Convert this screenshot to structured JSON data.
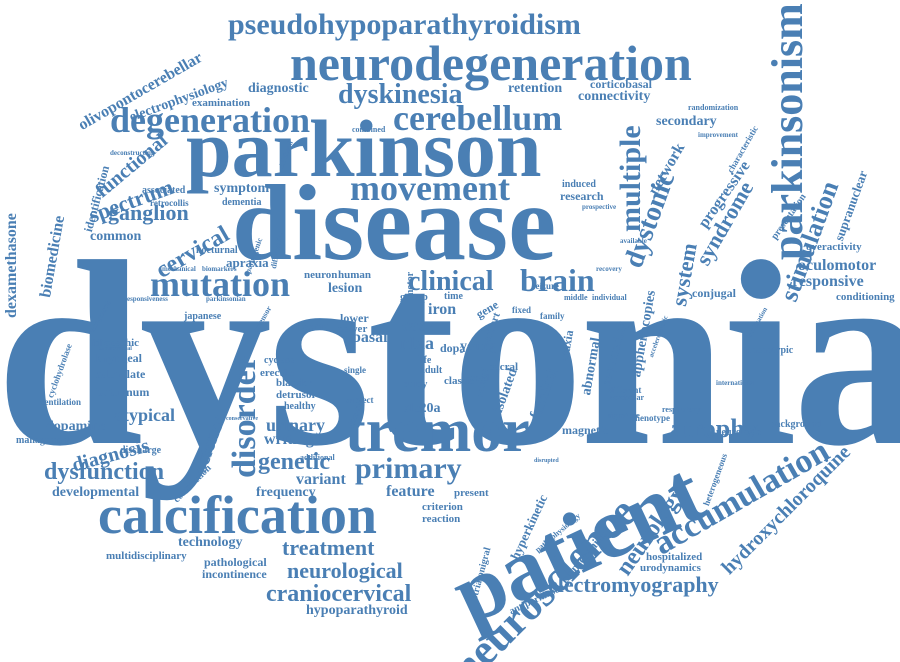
{
  "theme": {
    "word_color": "#4a7fb4",
    "background": "#ffffff"
  },
  "words": [
    {
      "text": "dystonia"
    },
    {
      "text": "disease"
    },
    {
      "text": "parkinson"
    },
    {
      "text": "patient"
    },
    {
      "text": "neurodegeneration"
    },
    {
      "text": "tremor"
    },
    {
      "text": "calcification"
    },
    {
      "text": "pseudohypoparathyroidism"
    },
    {
      "text": "parkinsonism"
    },
    {
      "text": "movement"
    },
    {
      "text": "degeneration"
    },
    {
      "text": "cerebellum"
    },
    {
      "text": "mutation"
    },
    {
      "text": "neuroscience"
    },
    {
      "text": "accumulation"
    },
    {
      "text": "disorder"
    },
    {
      "text": "primary"
    },
    {
      "text": "brain"
    },
    {
      "text": "clinical"
    },
    {
      "text": "dyskinesia"
    },
    {
      "text": "electromyography"
    },
    {
      "text": "craniocervical"
    },
    {
      "text": "neurological"
    },
    {
      "text": "treatment"
    },
    {
      "text": "dysfunction"
    },
    {
      "text": "genetic"
    },
    {
      "text": "atrophy"
    },
    {
      "text": "hydroxychloroquine"
    },
    {
      "text": "neurology"
    },
    {
      "text": "cervical"
    },
    {
      "text": "ganglion"
    },
    {
      "text": "spectrum"
    },
    {
      "text": "functional"
    },
    {
      "text": "multiple"
    },
    {
      "text": "dystonic"
    },
    {
      "text": "syndrome"
    },
    {
      "text": "system"
    },
    {
      "text": "stimulation"
    },
    {
      "text": "science"
    },
    {
      "text": "dexamethasone"
    },
    {
      "text": "biomedicine"
    },
    {
      "text": "olivopontocerebellar"
    },
    {
      "text": "electrophysiology"
    },
    {
      "text": "diagnostic"
    },
    {
      "text": "examination"
    },
    {
      "text": "retention"
    },
    {
      "text": "connectivity"
    },
    {
      "text": "corticobasal"
    },
    {
      "text": "secondary"
    },
    {
      "text": "network"
    },
    {
      "text": "progressive"
    },
    {
      "text": "supranuclear"
    },
    {
      "text": "oculomotor"
    },
    {
      "text": "responsive"
    },
    {
      "text": "overactivity"
    },
    {
      "text": "conditioning"
    },
    {
      "text": "conjugal"
    },
    {
      "text": "phenotypic"
    },
    {
      "text": "background"
    },
    {
      "text": "neurologic"
    },
    {
      "text": "hospitalized"
    },
    {
      "text": "urodynamics"
    },
    {
      "text": "hyperkinetic"
    },
    {
      "text": "transcranial"
    },
    {
      "text": "antiparkinson"
    },
    {
      "text": "hypoparathyroid"
    },
    {
      "text": "technology"
    },
    {
      "text": "multidisciplinary"
    },
    {
      "text": "pathological"
    },
    {
      "text": "incontinence"
    },
    {
      "text": "developmental"
    },
    {
      "text": "diagnosis"
    },
    {
      "text": "dopamine"
    },
    {
      "text": "management"
    },
    {
      "text": "atypical"
    },
    {
      "text": "botulinum"
    },
    {
      "text": "adenylate"
    },
    {
      "text": "laryngeal"
    },
    {
      "text": "idiopathic"
    },
    {
      "text": "common"
    },
    {
      "text": "symptom"
    },
    {
      "text": "dementia"
    },
    {
      "text": "apraxia"
    },
    {
      "text": "nocturnal"
    },
    {
      "text": "urinary"
    },
    {
      "text": "writing"
    },
    {
      "text": "variant"
    },
    {
      "text": "frequency"
    },
    {
      "text": "feature"
    },
    {
      "text": "present"
    },
    {
      "text": "criterion"
    },
    {
      "text": "reaction"
    },
    {
      "text": "case"
    },
    {
      "text": "nbia"
    },
    {
      "text": "basal"
    },
    {
      "text": "lesion"
    },
    {
      "text": "neuron"
    },
    {
      "text": "human"
    },
    {
      "text": "iron"
    },
    {
      "text": "young"
    },
    {
      "text": "isolated"
    },
    {
      "text": "familial"
    },
    {
      "text": "abnormal"
    },
    {
      "text": "sequencing"
    },
    {
      "text": "apphenocopies"
    },
    {
      "text": "ataxia"
    },
    {
      "text": "slc20a"
    },
    {
      "text": "magnetic"
    },
    {
      "text": "induced"
    },
    {
      "text": "research"
    },
    {
      "text": "classic"
    },
    {
      "text": "group"
    },
    {
      "text": "gene"
    },
    {
      "text": "cohort"
    },
    {
      "text": "exome"
    },
    {
      "text": "japanese"
    },
    {
      "text": "erectile"
    },
    {
      "text": "bladder"
    },
    {
      "text": "detrusor"
    },
    {
      "text": "healthy"
    },
    {
      "text": "contraction"
    },
    {
      "text": "discharge"
    },
    {
      "text": "ventilation"
    },
    {
      "text": "identification"
    },
    {
      "text": "associated"
    },
    {
      "text": "retrocollis"
    },
    {
      "text": "combined"
    },
    {
      "text": "randomization"
    },
    {
      "text": "improvement"
    },
    {
      "text": "characteristic"
    },
    {
      "text": "presentation"
    },
    {
      "text": "cyclohydrolase"
    },
    {
      "text": "urogenital"
    },
    {
      "text": "different"
    },
    {
      "text": "cerebellar"
    },
    {
      "text": "signature"
    },
    {
      "text": "respiratory"
    },
    {
      "text": "phenotype"
    },
    {
      "text": "heterogeneous"
    },
    {
      "text": "striatonigral"
    },
    {
      "text": "lower"
    },
    {
      "text": "power"
    },
    {
      "text": "dopa"
    },
    {
      "text": "cord"
    },
    {
      "text": "sacral"
    },
    {
      "text": "life"
    },
    {
      "text": "time"
    },
    {
      "text": "fixed"
    },
    {
      "text": "family"
    },
    {
      "text": "deconstructing"
    },
    {
      "text": "childhood"
    },
    {
      "text": "mechanical"
    },
    {
      "text": "cyclase"
    },
    {
      "text": "pathophysiology"
    },
    {
      "text": "essential"
    },
    {
      "text": "additional"
    },
    {
      "text": "adult"
    },
    {
      "text": "study"
    },
    {
      "text": "single"
    },
    {
      "text": "subject"
    },
    {
      "text": "seizure"
    },
    {
      "text": "middle"
    },
    {
      "text": "individual"
    },
    {
      "text": "motor"
    },
    {
      "text": "related"
    },
    {
      "text": "recovery"
    },
    {
      "text": "available"
    },
    {
      "text": "prospective"
    },
    {
      "text": "differential"
    },
    {
      "text": "pathogenic"
    },
    {
      "text": "biomarkers"
    },
    {
      "text": "parkinsonian"
    },
    {
      "text": "responsiveness"
    },
    {
      "text": "international"
    },
    {
      "text": "accelerometric"
    },
    {
      "text": "localization"
    },
    {
      "text": "extensor"
    },
    {
      "text": "intracerebral"
    },
    {
      "text": "conservative"
    },
    {
      "text": "disrupted"
    }
  ]
}
